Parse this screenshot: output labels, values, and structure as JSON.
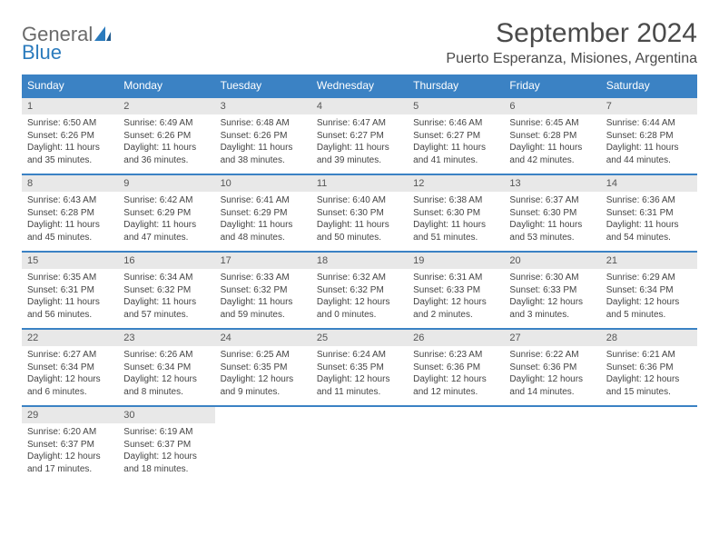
{
  "logo": {
    "text1": "General",
    "text2": "Blue"
  },
  "title": "September 2024",
  "location": "Puerto Esperanza, Misiones, Argentina",
  "colors": {
    "header_blue": "#3b82c4",
    "row_divider": "#3b82c4",
    "date_bg": "#e8e8e8",
    "text": "#444444",
    "logo_gray": "#6a6a6a",
    "logo_blue": "#2b7bbd"
  },
  "day_labels": [
    "Sunday",
    "Monday",
    "Tuesday",
    "Wednesday",
    "Thursday",
    "Friday",
    "Saturday"
  ],
  "weeks": [
    {
      "dates": [
        "1",
        "2",
        "3",
        "4",
        "5",
        "6",
        "7"
      ],
      "cells": [
        {
          "sunrise": "Sunrise: 6:50 AM",
          "sunset": "Sunset: 6:26 PM",
          "daylight1": "Daylight: 11 hours",
          "daylight2": "and 35 minutes."
        },
        {
          "sunrise": "Sunrise: 6:49 AM",
          "sunset": "Sunset: 6:26 PM",
          "daylight1": "Daylight: 11 hours",
          "daylight2": "and 36 minutes."
        },
        {
          "sunrise": "Sunrise: 6:48 AM",
          "sunset": "Sunset: 6:26 PM",
          "daylight1": "Daylight: 11 hours",
          "daylight2": "and 38 minutes."
        },
        {
          "sunrise": "Sunrise: 6:47 AM",
          "sunset": "Sunset: 6:27 PM",
          "daylight1": "Daylight: 11 hours",
          "daylight2": "and 39 minutes."
        },
        {
          "sunrise": "Sunrise: 6:46 AM",
          "sunset": "Sunset: 6:27 PM",
          "daylight1": "Daylight: 11 hours",
          "daylight2": "and 41 minutes."
        },
        {
          "sunrise": "Sunrise: 6:45 AM",
          "sunset": "Sunset: 6:28 PM",
          "daylight1": "Daylight: 11 hours",
          "daylight2": "and 42 minutes."
        },
        {
          "sunrise": "Sunrise: 6:44 AM",
          "sunset": "Sunset: 6:28 PM",
          "daylight1": "Daylight: 11 hours",
          "daylight2": "and 44 minutes."
        }
      ]
    },
    {
      "dates": [
        "8",
        "9",
        "10",
        "11",
        "12",
        "13",
        "14"
      ],
      "cells": [
        {
          "sunrise": "Sunrise: 6:43 AM",
          "sunset": "Sunset: 6:28 PM",
          "daylight1": "Daylight: 11 hours",
          "daylight2": "and 45 minutes."
        },
        {
          "sunrise": "Sunrise: 6:42 AM",
          "sunset": "Sunset: 6:29 PM",
          "daylight1": "Daylight: 11 hours",
          "daylight2": "and 47 minutes."
        },
        {
          "sunrise": "Sunrise: 6:41 AM",
          "sunset": "Sunset: 6:29 PM",
          "daylight1": "Daylight: 11 hours",
          "daylight2": "and 48 minutes."
        },
        {
          "sunrise": "Sunrise: 6:40 AM",
          "sunset": "Sunset: 6:30 PM",
          "daylight1": "Daylight: 11 hours",
          "daylight2": "and 50 minutes."
        },
        {
          "sunrise": "Sunrise: 6:38 AM",
          "sunset": "Sunset: 6:30 PM",
          "daylight1": "Daylight: 11 hours",
          "daylight2": "and 51 minutes."
        },
        {
          "sunrise": "Sunrise: 6:37 AM",
          "sunset": "Sunset: 6:30 PM",
          "daylight1": "Daylight: 11 hours",
          "daylight2": "and 53 minutes."
        },
        {
          "sunrise": "Sunrise: 6:36 AM",
          "sunset": "Sunset: 6:31 PM",
          "daylight1": "Daylight: 11 hours",
          "daylight2": "and 54 minutes."
        }
      ]
    },
    {
      "dates": [
        "15",
        "16",
        "17",
        "18",
        "19",
        "20",
        "21"
      ],
      "cells": [
        {
          "sunrise": "Sunrise: 6:35 AM",
          "sunset": "Sunset: 6:31 PM",
          "daylight1": "Daylight: 11 hours",
          "daylight2": "and 56 minutes."
        },
        {
          "sunrise": "Sunrise: 6:34 AM",
          "sunset": "Sunset: 6:32 PM",
          "daylight1": "Daylight: 11 hours",
          "daylight2": "and 57 minutes."
        },
        {
          "sunrise": "Sunrise: 6:33 AM",
          "sunset": "Sunset: 6:32 PM",
          "daylight1": "Daylight: 11 hours",
          "daylight2": "and 59 minutes."
        },
        {
          "sunrise": "Sunrise: 6:32 AM",
          "sunset": "Sunset: 6:32 PM",
          "daylight1": "Daylight: 12 hours",
          "daylight2": "and 0 minutes."
        },
        {
          "sunrise": "Sunrise: 6:31 AM",
          "sunset": "Sunset: 6:33 PM",
          "daylight1": "Daylight: 12 hours",
          "daylight2": "and 2 minutes."
        },
        {
          "sunrise": "Sunrise: 6:30 AM",
          "sunset": "Sunset: 6:33 PM",
          "daylight1": "Daylight: 12 hours",
          "daylight2": "and 3 minutes."
        },
        {
          "sunrise": "Sunrise: 6:29 AM",
          "sunset": "Sunset: 6:34 PM",
          "daylight1": "Daylight: 12 hours",
          "daylight2": "and 5 minutes."
        }
      ]
    },
    {
      "dates": [
        "22",
        "23",
        "24",
        "25",
        "26",
        "27",
        "28"
      ],
      "cells": [
        {
          "sunrise": "Sunrise: 6:27 AM",
          "sunset": "Sunset: 6:34 PM",
          "daylight1": "Daylight: 12 hours",
          "daylight2": "and 6 minutes."
        },
        {
          "sunrise": "Sunrise: 6:26 AM",
          "sunset": "Sunset: 6:34 PM",
          "daylight1": "Daylight: 12 hours",
          "daylight2": "and 8 minutes."
        },
        {
          "sunrise": "Sunrise: 6:25 AM",
          "sunset": "Sunset: 6:35 PM",
          "daylight1": "Daylight: 12 hours",
          "daylight2": "and 9 minutes."
        },
        {
          "sunrise": "Sunrise: 6:24 AM",
          "sunset": "Sunset: 6:35 PM",
          "daylight1": "Daylight: 12 hours",
          "daylight2": "and 11 minutes."
        },
        {
          "sunrise": "Sunrise: 6:23 AM",
          "sunset": "Sunset: 6:36 PM",
          "daylight1": "Daylight: 12 hours",
          "daylight2": "and 12 minutes."
        },
        {
          "sunrise": "Sunrise: 6:22 AM",
          "sunset": "Sunset: 6:36 PM",
          "daylight1": "Daylight: 12 hours",
          "daylight2": "and 14 minutes."
        },
        {
          "sunrise": "Sunrise: 6:21 AM",
          "sunset": "Sunset: 6:36 PM",
          "daylight1": "Daylight: 12 hours",
          "daylight2": "and 15 minutes."
        }
      ]
    },
    {
      "dates": [
        "29",
        "30",
        "",
        "",
        "",
        "",
        ""
      ],
      "cells": [
        {
          "sunrise": "Sunrise: 6:20 AM",
          "sunset": "Sunset: 6:37 PM",
          "daylight1": "Daylight: 12 hours",
          "daylight2": "and 17 minutes."
        },
        {
          "sunrise": "Sunrise: 6:19 AM",
          "sunset": "Sunset: 6:37 PM",
          "daylight1": "Daylight: 12 hours",
          "daylight2": "and 18 minutes."
        },
        null,
        null,
        null,
        null,
        null
      ]
    }
  ]
}
